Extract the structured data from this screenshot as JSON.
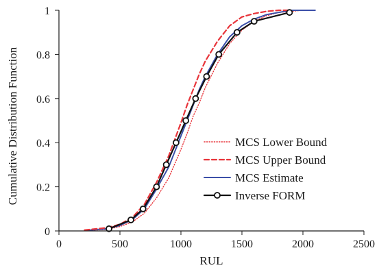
{
  "chart_data": {
    "type": "line",
    "xlabel": "RUL",
    "ylabel": "Cumulative Distribution Function",
    "xlim": [
      0,
      2500
    ],
    "ylim": [
      0,
      1
    ],
    "x_ticks": [
      "0",
      "500",
      "1000",
      "1500",
      "2000",
      "2500"
    ],
    "y_ticks": [
      "0",
      "0.2",
      "0.4",
      "0.6",
      "0.8",
      "1"
    ],
    "grid": false,
    "legend_position": "lower-right",
    "series": [
      {
        "name": "MCS Lower Bound",
        "color": "#e8343a",
        "style": "dotted",
        "x": [
          230,
          400,
          500,
          600,
          700,
          800,
          900,
          1000,
          1050,
          1100,
          1150,
          1200,
          1300,
          1400,
          1500,
          1600,
          1700,
          1800,
          2000,
          2100
        ],
        "y": [
          0.002,
          0.007,
          0.02,
          0.04,
          0.08,
          0.15,
          0.24,
          0.37,
          0.44,
          0.52,
          0.58,
          0.65,
          0.76,
          0.85,
          0.91,
          0.95,
          0.975,
          0.99,
          1.0,
          1.0
        ]
      },
      {
        "name": "MCS Upper Bound",
        "color": "#e8343a",
        "style": "dashed",
        "x": [
          210,
          400,
          500,
          600,
          700,
          800,
          900,
          1000,
          1050,
          1100,
          1150,
          1200,
          1300,
          1400,
          1500,
          1600,
          1700,
          1800,
          1900
        ],
        "y": [
          0.004,
          0.015,
          0.03,
          0.06,
          0.12,
          0.22,
          0.34,
          0.49,
          0.57,
          0.64,
          0.71,
          0.77,
          0.86,
          0.93,
          0.97,
          0.985,
          0.995,
          1.0,
          1.0
        ]
      },
      {
        "name": "MCS Estimate",
        "color": "#3b4fa8",
        "style": "solid",
        "x": [
          240,
          400,
          500,
          600,
          700,
          800,
          900,
          1000,
          1050,
          1100,
          1150,
          1200,
          1300,
          1400,
          1500,
          1600,
          1700,
          1800,
          1900,
          2100
        ],
        "y": [
          0.003,
          0.01,
          0.025,
          0.05,
          0.1,
          0.19,
          0.29,
          0.43,
          0.5,
          0.57,
          0.64,
          0.7,
          0.8,
          0.88,
          0.93,
          0.96,
          0.98,
          0.99,
          1.0,
          1.0
        ]
      },
      {
        "name": "Inverse FORM",
        "color": "#111111",
        "style": "solid-markers",
        "x": [
          410,
          590,
          690,
          800,
          880,
          960,
          1040,
          1120,
          1210,
          1310,
          1460,
          1600,
          1890
        ],
        "y": [
          0.01,
          0.05,
          0.1,
          0.2,
          0.3,
          0.4,
          0.5,
          0.6,
          0.7,
          0.8,
          0.9,
          0.95,
          0.99
        ]
      }
    ]
  }
}
